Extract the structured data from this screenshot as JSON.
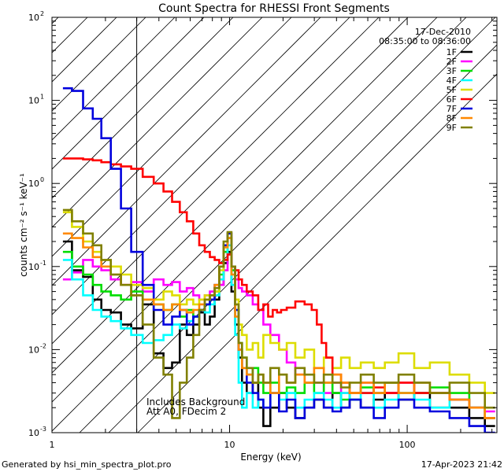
{
  "chart_data": {
    "type": "line",
    "title": "Count Spectra for RHESSI Front Segments",
    "xlabel": "Energy (keV)",
    "ylabel": "counts cm⁻² s⁻¹ keV⁻¹",
    "x_scale": "log",
    "y_scale": "log",
    "xlim": [
      1,
      320
    ],
    "ylim": [
      0.001,
      100
    ],
    "x_ticks": [
      {
        "value": 1,
        "label": "1"
      },
      {
        "value": 10,
        "label": "10"
      },
      {
        "value": 100,
        "label": "100"
      }
    ],
    "y_ticks": [
      {
        "value": 0.001,
        "base": "10",
        "exp": "-3"
      },
      {
        "value": 0.01,
        "base": "10",
        "exp": "-2"
      },
      {
        "value": 0.1,
        "base": "10",
        "exp": "-1"
      },
      {
        "value": 1,
        "base": "10",
        "exp": "0"
      },
      {
        "value": 10,
        "base": "10",
        "exp": "1"
      },
      {
        "value": 100,
        "base": "10",
        "exp": "2"
      }
    ],
    "attenuated_region_max_keV": 3,
    "date": "17-Dec-2010",
    "time_range": "08:35:00 to 08:36:00",
    "legend_position": "top-right",
    "annotations": [
      "Includes Background",
      "Att A0, FDecim 2"
    ],
    "series": [
      {
        "name": "1F",
        "color": "#000000",
        "x": [
          1.2,
          1.4,
          1.6,
          1.8,
          2.0,
          2.3,
          2.6,
          3.0,
          3.5,
          4,
          4.5,
          5,
          5.5,
          6,
          6.5,
          7,
          7.5,
          8,
          8.5,
          9,
          9.5,
          10,
          10.5,
          11,
          11.5,
          12,
          13,
          14,
          15,
          16,
          18,
          20,
          22,
          25,
          28,
          32,
          36,
          40,
          45,
          50,
          60,
          70,
          80,
          100,
          120,
          150,
          200,
          250,
          300
        ],
        "y": [
          0.2,
          0.09,
          0.075,
          0.04,
          0.03,
          0.028,
          0.02,
          0.018,
          0.035,
          0.009,
          0.006,
          0.007,
          0.02,
          0.015,
          0.02,
          0.028,
          0.02,
          0.025,
          0.04,
          0.06,
          0.11,
          0.15,
          0.05,
          0.02,
          0.008,
          0.004,
          0.003,
          0.004,
          0.002,
          0.0012,
          0.002,
          0.003,
          0.002,
          0.0015,
          0.002,
          0.0025,
          0.002,
          0.003,
          0.002,
          0.0025,
          0.002,
          0.0025,
          0.003,
          0.0025,
          0.003,
          0.002,
          0.002,
          0.0015,
          0.0012
        ]
      },
      {
        "name": "2F",
        "color": "#ff00ff",
        "x": [
          1.2,
          1.4,
          1.6,
          1.8,
          2.0,
          2.3,
          2.6,
          3.0,
          3.5,
          4,
          4.5,
          5,
          5.5,
          6,
          6.5,
          7,
          7.5,
          8,
          8.5,
          9,
          9.5,
          10,
          10.5,
          11,
          11.5,
          12,
          13,
          14,
          15,
          16,
          18,
          20,
          22,
          25,
          28,
          32,
          36,
          40,
          45,
          50,
          60,
          70,
          80,
          100,
          120,
          150,
          200,
          250,
          300
        ],
        "y": [
          0.07,
          0.085,
          0.12,
          0.1,
          0.09,
          0.07,
          0.06,
          0.065,
          0.05,
          0.07,
          0.06,
          0.065,
          0.05,
          0.055,
          0.045,
          0.04,
          0.045,
          0.05,
          0.055,
          0.06,
          0.09,
          0.14,
          0.1,
          0.07,
          0.055,
          0.05,
          0.045,
          0.035,
          0.03,
          0.02,
          0.015,
          0.01,
          0.007,
          0.005,
          0.004,
          0.004,
          0.003,
          0.004,
          0.003,
          0.003,
          0.004,
          0.003,
          0.003,
          0.004,
          0.003,
          0.003,
          0.0025,
          0.002,
          0.0018
        ]
      },
      {
        "name": "3F",
        "color": "#00dd00",
        "x": [
          1.2,
          1.4,
          1.6,
          1.8,
          2.0,
          2.3,
          2.6,
          3.0,
          3.5,
          4,
          4.5,
          5,
          5.5,
          6,
          6.5,
          7,
          7.5,
          8,
          8.5,
          9,
          9.5,
          10,
          10.5,
          11,
          11.5,
          12,
          13,
          14,
          15,
          16,
          18,
          20,
          22,
          25,
          28,
          32,
          36,
          40,
          45,
          50,
          60,
          70,
          80,
          100,
          120,
          150,
          200,
          250,
          300
        ],
        "y": [
          0.15,
          0.1,
          0.08,
          0.06,
          0.05,
          0.045,
          0.04,
          0.05,
          0.04,
          0.035,
          0.03,
          0.035,
          0.025,
          0.03,
          0.025,
          0.03,
          0.035,
          0.04,
          0.05,
          0.08,
          0.15,
          0.22,
          0.09,
          0.03,
          0.012,
          0.008,
          0.005,
          0.006,
          0.004,
          0.003,
          0.004,
          0.003,
          0.0035,
          0.003,
          0.004,
          0.003,
          0.004,
          0.003,
          0.0025,
          0.003,
          0.0035,
          0.003,
          0.004,
          0.003,
          0.003,
          0.0035,
          0.003,
          0.002,
          0.0015
        ]
      },
      {
        "name": "4F",
        "color": "#00ffff",
        "x": [
          1.2,
          1.4,
          1.6,
          1.8,
          2.0,
          2.3,
          2.6,
          3.0,
          3.5,
          4,
          4.5,
          5,
          5.5,
          6,
          6.5,
          7,
          7.5,
          8,
          8.5,
          9,
          9.5,
          10,
          10.5,
          11,
          11.5,
          12,
          13,
          14,
          15,
          16,
          18,
          20,
          22,
          25,
          28,
          32,
          36,
          40,
          45,
          50,
          60,
          70,
          80,
          100,
          120,
          150,
          200,
          250,
          300
        ],
        "y": [
          0.12,
          0.07,
          0.045,
          0.03,
          0.025,
          0.022,
          0.018,
          0.015,
          0.012,
          0.013,
          0.015,
          0.02,
          0.018,
          0.022,
          0.025,
          0.03,
          0.028,
          0.035,
          0.045,
          0.07,
          0.12,
          0.18,
          0.06,
          0.015,
          0.004,
          0.002,
          0.003,
          0.002,
          0.0025,
          0.002,
          0.003,
          0.0025,
          0.003,
          0.002,
          0.0025,
          0.003,
          0.0025,
          0.002,
          0.003,
          0.0025,
          0.003,
          0.002,
          0.0025,
          0.003,
          0.0025,
          0.002,
          0.0025,
          0.002,
          0.0015
        ]
      },
      {
        "name": "5F",
        "color": "#dddd00",
        "x": [
          1.2,
          1.4,
          1.6,
          1.8,
          2.0,
          2.3,
          2.6,
          3.0,
          3.5,
          4,
          4.5,
          5,
          5.5,
          6,
          6.5,
          7,
          7.5,
          8,
          8.5,
          9,
          9.5,
          10,
          10.5,
          11,
          11.5,
          12,
          13,
          14,
          15,
          16,
          18,
          20,
          22,
          25,
          28,
          32,
          36,
          40,
          45,
          50,
          60,
          70,
          80,
          100,
          120,
          150,
          200,
          250,
          300
        ],
        "y": [
          0.45,
          0.3,
          0.2,
          0.15,
          0.12,
          0.1,
          0.08,
          0.06,
          0.055,
          0.04,
          0.05,
          0.045,
          0.035,
          0.04,
          0.035,
          0.04,
          0.045,
          0.04,
          0.05,
          0.09,
          0.18,
          0.25,
          0.1,
          0.04,
          0.02,
          0.015,
          0.01,
          0.012,
          0.008,
          0.015,
          0.012,
          0.01,
          0.012,
          0.008,
          0.01,
          0.006,
          0.008,
          0.006,
          0.008,
          0.006,
          0.007,
          0.006,
          0.007,
          0.009,
          0.006,
          0.007,
          0.005,
          0.004,
          0.003
        ]
      },
      {
        "name": "6F",
        "color": "#ff0000",
        "x": [
          1.2,
          1.4,
          1.6,
          1.8,
          2.0,
          2.3,
          2.6,
          3.0,
          3.5,
          4,
          4.5,
          5,
          5.5,
          6,
          6.5,
          7,
          7.5,
          8,
          8.5,
          9,
          9.5,
          10,
          10.5,
          11,
          11.5,
          12,
          13,
          14,
          15,
          16,
          17,
          18,
          19,
          20,
          22,
          25,
          28,
          30,
          32,
          34,
          36,
          40,
          45,
          50,
          60,
          70,
          80,
          100,
          120,
          150,
          200,
          250,
          300
        ],
        "y": [
          2.0,
          2.0,
          1.95,
          1.9,
          1.8,
          1.7,
          1.6,
          1.5,
          1.2,
          1.0,
          0.8,
          0.6,
          0.45,
          0.35,
          0.25,
          0.18,
          0.15,
          0.13,
          0.12,
          0.11,
          0.12,
          0.14,
          0.1,
          0.09,
          0.07,
          0.06,
          0.05,
          0.045,
          0.03,
          0.035,
          0.025,
          0.03,
          0.028,
          0.03,
          0.032,
          0.038,
          0.035,
          0.03,
          0.02,
          0.012,
          0.008,
          0.005,
          0.004,
          0.003,
          0.003,
          0.0035,
          0.003,
          0.004,
          0.003,
          0.003,
          0.0025,
          0.002,
          0.0015
        ]
      },
      {
        "name": "7F",
        "color": "#0000dd",
        "x": [
          1.2,
          1.4,
          1.6,
          1.8,
          2.0,
          2.3,
          2.6,
          3.0,
          3.5,
          4,
          4.5,
          5,
          5.5,
          6,
          6.5,
          7,
          7.5,
          8,
          8.5,
          9,
          9.5,
          10,
          10.5,
          11,
          11.5,
          12,
          13,
          14,
          15,
          16,
          18,
          20,
          22,
          25,
          28,
          32,
          36,
          40,
          45,
          50,
          60,
          70,
          80,
          100,
          120,
          150,
          200,
          250,
          300
        ],
        "y": [
          14,
          13,
          8,
          6,
          3.5,
          1.5,
          0.5,
          0.15,
          0.06,
          0.03,
          0.02,
          0.025,
          0.03,
          0.02,
          0.025,
          0.03,
          0.035,
          0.04,
          0.06,
          0.1,
          0.18,
          0.25,
          0.1,
          0.03,
          0.01,
          0.006,
          0.004,
          0.003,
          0.0025,
          0.002,
          0.003,
          0.0018,
          0.0025,
          0.0015,
          0.002,
          0.0025,
          0.002,
          0.0018,
          0.002,
          0.0025,
          0.002,
          0.0015,
          0.002,
          0.0025,
          0.002,
          0.0018,
          0.0015,
          0.0012,
          0.001
        ]
      },
      {
        "name": "8F",
        "color": "#ff8800",
        "x": [
          1.2,
          1.4,
          1.6,
          1.8,
          2.0,
          2.3,
          2.6,
          3.0,
          3.5,
          4,
          4.5,
          5,
          5.5,
          6,
          6.5,
          7,
          7.5,
          8,
          8.5,
          9,
          9.5,
          10,
          10.5,
          11,
          11.5,
          12,
          13,
          14,
          15,
          16,
          18,
          20,
          22,
          25,
          28,
          32,
          36,
          40,
          45,
          50,
          60,
          70,
          80,
          100,
          120,
          150,
          200,
          250,
          300
        ],
        "y": [
          0.25,
          0.22,
          0.17,
          0.13,
          0.1,
          0.08,
          0.06,
          0.045,
          0.04,
          0.035,
          0.03,
          0.035,
          0.03,
          0.028,
          0.03,
          0.035,
          0.04,
          0.045,
          0.06,
          0.1,
          0.17,
          0.22,
          0.08,
          0.025,
          0.01,
          0.006,
          0.005,
          0.004,
          0.005,
          0.004,
          0.003,
          0.005,
          0.004,
          0.005,
          0.004,
          0.006,
          0.004,
          0.005,
          0.004,
          0.003,
          0.004,
          0.003,
          0.004,
          0.003,
          0.004,
          0.003,
          0.0025,
          0.002,
          0.0015
        ]
      },
      {
        "name": "9F",
        "color": "#808000",
        "x": [
          1.2,
          1.4,
          1.6,
          1.8,
          2.0,
          2.3,
          2.6,
          3.0,
          3.5,
          4,
          4.5,
          5,
          5.5,
          6,
          6.5,
          7,
          7.5,
          8,
          8.5,
          9,
          9.5,
          10,
          10.5,
          11,
          11.5,
          12,
          13,
          14,
          15,
          16,
          18,
          20,
          22,
          25,
          28,
          32,
          36,
          40,
          45,
          50,
          60,
          70,
          80,
          100,
          120,
          150,
          200,
          250,
          300
        ],
        "y": [
          0.48,
          0.35,
          0.25,
          0.18,
          0.12,
          0.08,
          0.06,
          0.045,
          0.02,
          0.008,
          0.005,
          0.0015,
          0.004,
          0.008,
          0.015,
          0.03,
          0.04,
          0.045,
          0.055,
          0.1,
          0.2,
          0.26,
          0.1,
          0.035,
          0.012,
          0.008,
          0.006,
          0.004,
          0.005,
          0.004,
          0.006,
          0.005,
          0.004,
          0.006,
          0.005,
          0.004,
          0.005,
          0.004,
          0.0035,
          0.004,
          0.005,
          0.004,
          0.004,
          0.005,
          0.004,
          0.003,
          0.004,
          0.003,
          0.002
        ]
      }
    ]
  },
  "footer": {
    "left": "Generated by hsi_min_spectra_plot.pro",
    "right": "17-Apr-2023 21:42"
  }
}
